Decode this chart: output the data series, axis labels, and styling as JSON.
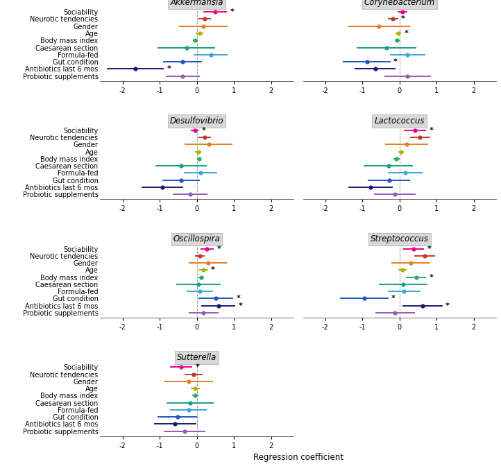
{
  "variables": [
    "Sociability",
    "Neurotic tendencies",
    "Gender",
    "Age",
    "Body mass index",
    "Caesarean section",
    "Formula-fed",
    "Gut condition",
    "Antibiotics last 6 mos",
    "Probiotic supplements"
  ],
  "colors": [
    "#e8008c",
    "#c0392b",
    "#e67e22",
    "#a8b400",
    "#27ae60",
    "#16a085",
    "#3aa8d8",
    "#2255bb",
    "#1a1a6e",
    "#9b59b6"
  ],
  "panels": [
    {
      "title": "Akkermansia",
      "data": [
        {
          "est": 0.5,
          "lo": 0.18,
          "hi": 0.82,
          "sig": true
        },
        {
          "est": 0.22,
          "lo": 0.05,
          "hi": 0.39,
          "sig": false
        },
        {
          "est": 0.18,
          "lo": -0.48,
          "hi": 0.84,
          "sig": false
        },
        {
          "est": 0.08,
          "lo": -0.02,
          "hi": 0.18,
          "sig": false
        },
        {
          "est": -0.04,
          "lo": -0.1,
          "hi": 0.02,
          "sig": false
        },
        {
          "est": -0.28,
          "lo": -1.05,
          "hi": 0.49,
          "sig": false
        },
        {
          "est": 0.38,
          "lo": -0.08,
          "hi": 0.84,
          "sig": false
        },
        {
          "est": -0.38,
          "lo": -0.9,
          "hi": 0.14,
          "sig": false
        },
        {
          "est": -1.65,
          "lo": -2.42,
          "hi": -0.88,
          "sig": true
        },
        {
          "est": -0.38,
          "lo": -0.84,
          "hi": 0.08,
          "sig": false
        }
      ]
    },
    {
      "title": "Corynebacterium",
      "data": [
        {
          "est": 0.08,
          "lo": -0.05,
          "hi": 0.21,
          "sig": false
        },
        {
          "est": -0.18,
          "lo": -0.32,
          "hi": -0.04,
          "sig": true
        },
        {
          "est": -0.55,
          "lo": -1.38,
          "hi": 0.28,
          "sig": false
        },
        {
          "est": -0.03,
          "lo": -0.11,
          "hi": 0.05,
          "sig": true
        },
        {
          "est": -0.06,
          "lo": -0.12,
          "hi": 0.0,
          "sig": false
        },
        {
          "est": -0.35,
          "lo": -1.15,
          "hi": 0.45,
          "sig": false
        },
        {
          "est": 0.22,
          "lo": -0.25,
          "hi": 0.69,
          "sig": false
        },
        {
          "est": -0.88,
          "lo": -1.52,
          "hi": -0.24,
          "sig": true
        },
        {
          "est": -0.65,
          "lo": -1.2,
          "hi": -0.1,
          "sig": false
        },
        {
          "est": 0.22,
          "lo": -0.4,
          "hi": 0.84,
          "sig": false
        }
      ]
    },
    {
      "title": "Desulfovibrio",
      "data": [
        {
          "est": -0.05,
          "lo": -0.15,
          "hi": 0.05,
          "sig": true
        },
        {
          "est": 0.22,
          "lo": 0.05,
          "hi": 0.39,
          "sig": false
        },
        {
          "est": 0.32,
          "lo": -0.32,
          "hi": 0.96,
          "sig": false
        },
        {
          "est": 0.04,
          "lo": -0.04,
          "hi": 0.12,
          "sig": false
        },
        {
          "est": 0.06,
          "lo": 0.0,
          "hi": 0.12,
          "sig": false
        },
        {
          "est": -0.42,
          "lo": -1.12,
          "hi": 0.28,
          "sig": false
        },
        {
          "est": 0.1,
          "lo": -0.35,
          "hi": 0.55,
          "sig": false
        },
        {
          "est": -0.42,
          "lo": -0.92,
          "hi": 0.08,
          "sig": false
        },
        {
          "est": -0.92,
          "lo": -1.48,
          "hi": -0.36,
          "sig": false
        },
        {
          "est": -0.18,
          "lo": -0.65,
          "hi": 0.29,
          "sig": false
        }
      ]
    },
    {
      "title": "Lactococcus",
      "data": [
        {
          "est": 0.42,
          "lo": 0.12,
          "hi": 0.72,
          "sig": true
        },
        {
          "est": 0.55,
          "lo": 0.28,
          "hi": 0.82,
          "sig": false
        },
        {
          "est": 0.2,
          "lo": -0.38,
          "hi": 0.78,
          "sig": false
        },
        {
          "est": 0.04,
          "lo": -0.04,
          "hi": 0.12,
          "sig": false
        },
        {
          "est": -0.08,
          "lo": -0.16,
          "hi": 0.0,
          "sig": false
        },
        {
          "est": -0.3,
          "lo": -0.96,
          "hi": 0.36,
          "sig": false
        },
        {
          "est": 0.15,
          "lo": -0.32,
          "hi": 0.62,
          "sig": false
        },
        {
          "est": -0.28,
          "lo": -0.85,
          "hi": 0.29,
          "sig": false
        },
        {
          "est": -0.78,
          "lo": -1.38,
          "hi": -0.18,
          "sig": false
        },
        {
          "est": -0.12,
          "lo": -0.68,
          "hi": 0.44,
          "sig": false
        }
      ]
    },
    {
      "title": "Oscillospira",
      "data": [
        {
          "est": 0.28,
          "lo": 0.1,
          "hi": 0.46,
          "sig": true
        },
        {
          "est": 0.08,
          "lo": -0.05,
          "hi": 0.21,
          "sig": false
        },
        {
          "est": 0.3,
          "lo": -0.22,
          "hi": 0.82,
          "sig": false
        },
        {
          "est": 0.18,
          "lo": 0.06,
          "hi": 0.3,
          "sig": true
        },
        {
          "est": 0.12,
          "lo": 0.04,
          "hi": 0.2,
          "sig": false
        },
        {
          "est": 0.05,
          "lo": -0.55,
          "hi": 0.65,
          "sig": false
        },
        {
          "est": 0.08,
          "lo": -0.28,
          "hi": 0.44,
          "sig": false
        },
        {
          "est": 0.52,
          "lo": 0.05,
          "hi": 0.99,
          "sig": true
        },
        {
          "est": 0.58,
          "lo": 0.12,
          "hi": 1.04,
          "sig": true
        },
        {
          "est": 0.18,
          "lo": -0.22,
          "hi": 0.58,
          "sig": false
        }
      ]
    },
    {
      "title": "Streptococcus",
      "data": [
        {
          "est": 0.38,
          "lo": 0.1,
          "hi": 0.66,
          "sig": true
        },
        {
          "est": 0.68,
          "lo": 0.4,
          "hi": 0.96,
          "sig": false
        },
        {
          "est": 0.3,
          "lo": -0.22,
          "hi": 0.82,
          "sig": false
        },
        {
          "est": 0.08,
          "lo": -0.04,
          "hi": 0.2,
          "sig": false
        },
        {
          "est": 0.45,
          "lo": 0.18,
          "hi": 0.72,
          "sig": true
        },
        {
          "est": 0.1,
          "lo": -0.55,
          "hi": 0.75,
          "sig": false
        },
        {
          "est": 0.12,
          "lo": -0.32,
          "hi": 0.56,
          "sig": false
        },
        {
          "est": -0.95,
          "lo": -1.6,
          "hi": -0.3,
          "sig": true
        },
        {
          "est": 0.62,
          "lo": 0.08,
          "hi": 1.16,
          "sig": true
        },
        {
          "est": -0.12,
          "lo": -0.65,
          "hi": 0.41,
          "sig": false
        }
      ]
    },
    {
      "title": "Sutterella",
      "data": [
        {
          "est": -0.42,
          "lo": -0.72,
          "hi": -0.12,
          "sig": true
        },
        {
          "est": -0.08,
          "lo": -0.32,
          "hi": 0.16,
          "sig": false
        },
        {
          "est": -0.22,
          "lo": -0.88,
          "hi": 0.44,
          "sig": false
        },
        {
          "est": -0.04,
          "lo": -0.16,
          "hi": 0.08,
          "sig": false
        },
        {
          "est": -0.04,
          "lo": -0.12,
          "hi": 0.04,
          "sig": false
        },
        {
          "est": -0.18,
          "lo": -0.82,
          "hi": 0.46,
          "sig": false
        },
        {
          "est": -0.22,
          "lo": -0.72,
          "hi": 0.28,
          "sig": false
        },
        {
          "est": -0.52,
          "lo": -1.05,
          "hi": 0.01,
          "sig": false
        },
        {
          "est": -0.58,
          "lo": -1.15,
          "hi": -0.01,
          "sig": false
        },
        {
          "est": -0.32,
          "lo": -0.88,
          "hi": 0.24,
          "sig": false
        }
      ]
    }
  ],
  "xlabel": "Regression coefficient",
  "xlim": [
    -2.6,
    2.6
  ],
  "xticks": [
    -2,
    -1,
    0,
    1,
    2
  ],
  "title_bg": "#d8d8d8",
  "plot_bg": "#ffffff"
}
